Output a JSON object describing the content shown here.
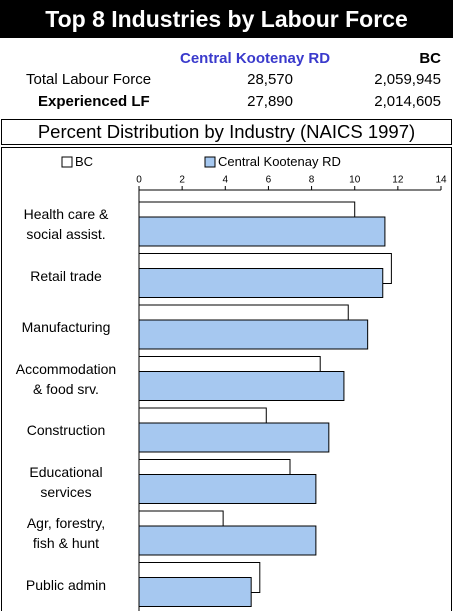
{
  "header": {
    "title": "Top 8 Industries by Labour Force",
    "columns": [
      "Central Kootenay RD",
      "BC"
    ],
    "rows": [
      [
        "Total Labour Force",
        "28,570",
        "2,059,945"
      ],
      [
        "Experienced LF",
        "27,890",
        "2,014,605"
      ]
    ],
    "subtitle": "Percent Distribution by Industry (NAICS 1997)"
  },
  "chart_data": {
    "type": "hbar",
    "categories": [
      "Health care &\nsocial assist.",
      "Retail trade",
      "Manufacturing",
      "Accommodation\n& food srv.",
      "Construction",
      "Educational\nservices",
      "Agr, forestry,\nfish & hunt",
      "Public admin"
    ],
    "series": [
      {
        "name": "BC",
        "color": "#ffffff",
        "values": [
          10.0,
          11.7,
          9.7,
          8.4,
          5.9,
          7.0,
          3.9,
          5.6
        ]
      },
      {
        "name": "Central Kootenay RD",
        "color": "#a6c8f0",
        "values": [
          11.4,
          11.3,
          10.6,
          9.5,
          8.8,
          8.2,
          8.2,
          5.2
        ]
      }
    ],
    "xlim": [
      0,
      14
    ],
    "xticks": [
      0,
      2,
      4,
      6,
      8,
      10,
      12,
      14
    ]
  }
}
